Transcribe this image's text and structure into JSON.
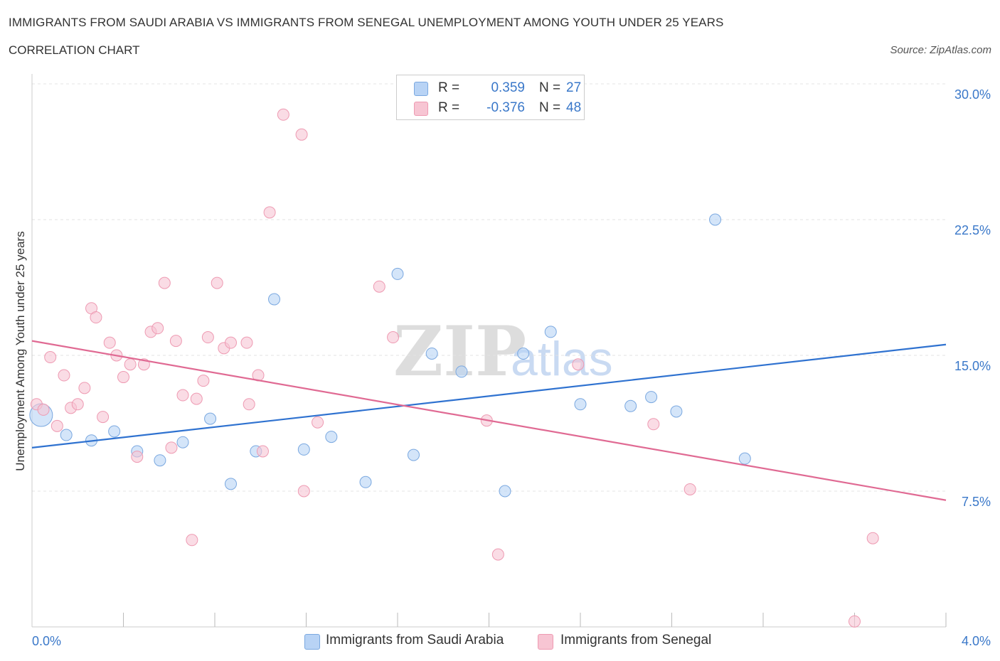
{
  "header": {
    "title": "IMMIGRANTS FROM SAUDI ARABIA VS IMMIGRANTS FROM SENEGAL UNEMPLOYMENT AMONG YOUTH UNDER 25 YEARS",
    "subtitle": "CORRELATION CHART",
    "source": "Source: ZipAtlas.com"
  },
  "legend": {
    "r_label": "R =",
    "n_label": "N =",
    "series1": {
      "r": "0.359",
      "n": "27"
    },
    "series2": {
      "r": "-0.376",
      "n": "48"
    }
  },
  "watermark": {
    "zip": "ZIP",
    "atlas": "atlas"
  },
  "colors": {
    "blue_fill": "#b8d3f5",
    "blue_stroke": "#7aa8e0",
    "blue_line": "#2f72d0",
    "pink_fill": "#f7c5d3",
    "pink_stroke": "#ee9ab2",
    "pink_line": "#e06a93",
    "axis_label_blue": "#3a78c9"
  },
  "chart_data": {
    "type": "scatter",
    "title": "IMMIGRANTS FROM SAUDI ARABIA VS IMMIGRANTS FROM SENEGAL UNEMPLOYMENT AMONG YOUTH UNDER 25 YEARS",
    "xlabel": "",
    "ylabel": "Unemployment Among Youth under 25 years",
    "xlim": [
      0,
      4.0
    ],
    "ylim": [
      0,
      30.0
    ],
    "x_tick_labels": [
      "0.0%",
      "4.0%"
    ],
    "y_ticks": [
      7.5,
      15.0,
      22.5,
      30.0
    ],
    "y_tick_labels": [
      "7.5%",
      "15.0%",
      "22.5%",
      "30.0%"
    ],
    "grid": "horizontal dashed",
    "legend_position": "top-center",
    "series": [
      {
        "name": "Immigrants from Saudi Arabia",
        "color": "#b8d3f5",
        "trend": {
          "x": [
            0.0,
            4.0
          ],
          "y": [
            9.9,
            15.6
          ]
        },
        "points": [
          {
            "x": 0.04,
            "y": 11.7,
            "big": true
          },
          {
            "x": 0.15,
            "y": 10.6
          },
          {
            "x": 0.26,
            "y": 10.3
          },
          {
            "x": 0.36,
            "y": 10.8
          },
          {
            "x": 0.46,
            "y": 9.7
          },
          {
            "x": 0.56,
            "y": 9.2
          },
          {
            "x": 0.66,
            "y": 10.2
          },
          {
            "x": 0.78,
            "y": 11.5
          },
          {
            "x": 0.87,
            "y": 7.9
          },
          {
            "x": 0.98,
            "y": 9.7
          },
          {
            "x": 1.06,
            "y": 18.1
          },
          {
            "x": 1.19,
            "y": 9.8
          },
          {
            "x": 1.31,
            "y": 10.5
          },
          {
            "x": 1.46,
            "y": 8.0
          },
          {
            "x": 1.6,
            "y": 19.5
          },
          {
            "x": 1.67,
            "y": 9.5
          },
          {
            "x": 1.75,
            "y": 15.1
          },
          {
            "x": 1.88,
            "y": 14.1
          },
          {
            "x": 2.07,
            "y": 7.5
          },
          {
            "x": 2.15,
            "y": 15.1
          },
          {
            "x": 2.27,
            "y": 16.3
          },
          {
            "x": 2.4,
            "y": 12.3
          },
          {
            "x": 2.62,
            "y": 12.2
          },
          {
            "x": 2.71,
            "y": 12.7
          },
          {
            "x": 2.82,
            "y": 11.9
          },
          {
            "x": 2.99,
            "y": 22.5
          },
          {
            "x": 3.12,
            "y": 9.3
          }
        ]
      },
      {
        "name": "Immigrants from Senegal",
        "color": "#f7c5d3",
        "trend": {
          "x": [
            0.0,
            4.0
          ],
          "y": [
            15.8,
            7.0
          ]
        },
        "points": [
          {
            "x": 0.02,
            "y": 12.3
          },
          {
            "x": 0.05,
            "y": 12.0
          },
          {
            "x": 0.08,
            "y": 14.9
          },
          {
            "x": 0.11,
            "y": 11.1
          },
          {
            "x": 0.14,
            "y": 13.9
          },
          {
            "x": 0.17,
            "y": 12.1
          },
          {
            "x": 0.2,
            "y": 12.3
          },
          {
            "x": 0.23,
            "y": 13.2
          },
          {
            "x": 0.26,
            "y": 17.6
          },
          {
            "x": 0.28,
            "y": 17.1
          },
          {
            "x": 0.31,
            "y": 11.6
          },
          {
            "x": 0.34,
            "y": 15.7
          },
          {
            "x": 0.37,
            "y": 15.0
          },
          {
            "x": 0.4,
            "y": 13.8
          },
          {
            "x": 0.43,
            "y": 14.5
          },
          {
            "x": 0.46,
            "y": 9.4
          },
          {
            "x": 0.49,
            "y": 14.5
          },
          {
            "x": 0.52,
            "y": 16.3
          },
          {
            "x": 0.55,
            "y": 16.5
          },
          {
            "x": 0.58,
            "y": 19.0
          },
          {
            "x": 0.61,
            "y": 9.9
          },
          {
            "x": 0.63,
            "y": 15.8
          },
          {
            "x": 0.66,
            "y": 12.8
          },
          {
            "x": 0.7,
            "y": 4.8
          },
          {
            "x": 0.72,
            "y": 12.6
          },
          {
            "x": 0.75,
            "y": 13.6
          },
          {
            "x": 0.77,
            "y": 16.0
          },
          {
            "x": 0.81,
            "y": 19.0
          },
          {
            "x": 0.84,
            "y": 15.4
          },
          {
            "x": 0.87,
            "y": 15.7
          },
          {
            "x": 0.94,
            "y": 15.7
          },
          {
            "x": 0.95,
            "y": 12.3
          },
          {
            "x": 0.99,
            "y": 13.9
          },
          {
            "x": 1.01,
            "y": 9.7
          },
          {
            "x": 1.04,
            "y": 22.9
          },
          {
            "x": 1.1,
            "y": 28.3
          },
          {
            "x": 1.18,
            "y": 27.2
          },
          {
            "x": 1.19,
            "y": 7.5
          },
          {
            "x": 1.25,
            "y": 11.3
          },
          {
            "x": 1.52,
            "y": 18.8
          },
          {
            "x": 1.58,
            "y": 16.0
          },
          {
            "x": 1.99,
            "y": 11.4
          },
          {
            "x": 2.04,
            "y": 4.0
          },
          {
            "x": 2.39,
            "y": 14.5
          },
          {
            "x": 2.72,
            "y": 11.2
          },
          {
            "x": 2.88,
            "y": 7.6
          },
          {
            "x": 3.6,
            "y": 0.3
          },
          {
            "x": 3.68,
            "y": 4.9
          }
        ]
      }
    ]
  },
  "bottom_legend": {
    "series1_label": "Immigrants from Saudi Arabia",
    "series2_label": "Immigrants from Senegal"
  }
}
